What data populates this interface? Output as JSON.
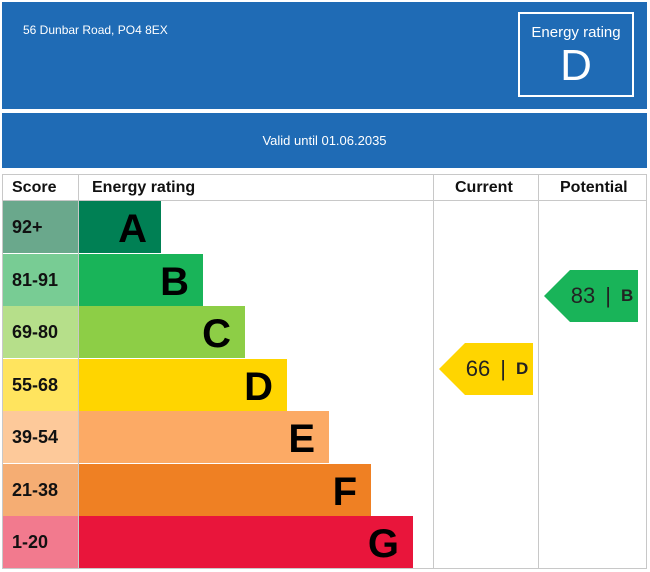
{
  "header": {
    "address": "56 Dunbar Road, PO4 8EX",
    "rating_label": "Energy rating",
    "rating_value": "D"
  },
  "validity": "Valid until 01.06.2035",
  "table": {
    "headers": {
      "score": "Score",
      "energy_rating": "Energy rating",
      "current": "Current",
      "potential": "Potential"
    },
    "bands": [
      {
        "score": "92+",
        "letter": "A",
        "bar_color": "#008054",
        "score_bg": "#6aa88c"
      },
      {
        "score": "81-91",
        "letter": "B",
        "bar_color": "#19b459",
        "score_bg": "#78cc94"
      },
      {
        "score": "69-80",
        "letter": "C",
        "bar_color": "#8dce46",
        "score_bg": "#b6df8a"
      },
      {
        "score": "55-68",
        "letter": "D",
        "bar_color": "#ffd500",
        "score_bg": "#ffe45e"
      },
      {
        "score": "39-54",
        "letter": "E",
        "bar_color": "#fcaa65",
        "score_bg": "#fdc99a"
      },
      {
        "score": "21-38",
        "letter": "F",
        "bar_color": "#ef8023",
        "score_bg": "#f5ad73"
      },
      {
        "score": "1-20",
        "letter": "G",
        "bar_color": "#e9153b",
        "score_bg": "#f27a8e"
      }
    ],
    "current": {
      "value": "66",
      "separator": "|",
      "letter": "D",
      "color": "#ffd500"
    },
    "potential": {
      "value": "83",
      "separator": "|",
      "letter": "B",
      "color": "#19b459"
    }
  }
}
